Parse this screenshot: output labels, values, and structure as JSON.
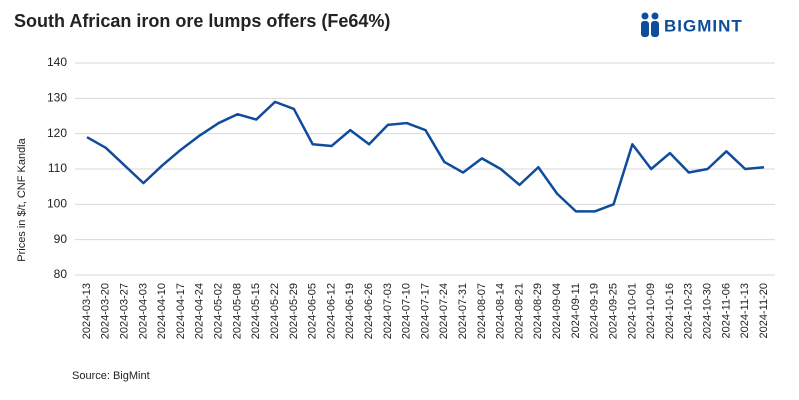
{
  "chart_data": {
    "type": "line",
    "title": "South African iron ore lumps offers (Fe64%)",
    "logo": "BIGMINT",
    "source": "Source: BigMint",
    "y_label": "Prices in $/t, CNF Kandla",
    "categories": [
      "2024-03-13",
      "2024-03-20",
      "2024-03-27",
      "2024-04-03",
      "2024-04-10",
      "2024-04-17",
      "2024-04-24",
      "2024-05-02",
      "2024-05-08",
      "2024-05-15",
      "2024-05-22",
      "2024-05-29",
      "2024-06-05",
      "2024-06-12",
      "2024-06-19",
      "2024-06-26",
      "2024-07-03",
      "2024-07-10",
      "2024-07-17",
      "2024-07-24",
      "2024-07-31",
      "2024-08-07",
      "2024-08-14",
      "2024-08-21",
      "2024-08-29",
      "2024-09-04",
      "2024-09-11",
      "2024-09-19",
      "2024-09-25",
      "2024-10-01",
      "2024-10-09",
      "2024-10-16",
      "2024-10-23",
      "2024-10-30",
      "2024-11-06",
      "2024-11-13",
      "2024-11-20"
    ],
    "series": [
      {
        "color": "#0f4c9c",
        "values": [
          119,
          116,
          111,
          106,
          111,
          115.5,
          119.5,
          123,
          125.5,
          124,
          129,
          127,
          117,
          116.5,
          121,
          117,
          122.5,
          123,
          121,
          112,
          109,
          113,
          110,
          105.5,
          110.5,
          103,
          98,
          98,
          100,
          117,
          110,
          114.5,
          109,
          110,
          115,
          110,
          110.5
        ]
      }
    ],
    "ylim": [
      80,
      140
    ],
    "yticks": [
      80,
      90,
      100,
      110,
      120,
      130,
      140
    ],
    "grid": true
  }
}
